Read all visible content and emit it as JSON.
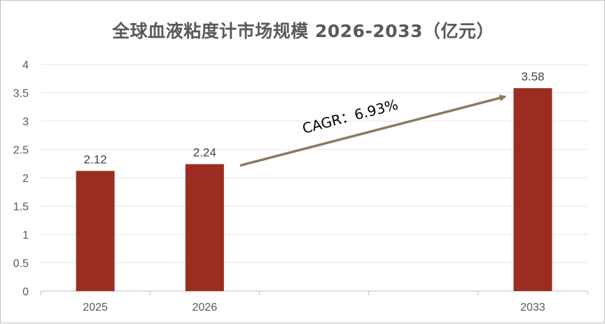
{
  "chart_data": {
    "type": "bar",
    "title": "全球血液粘度计市场规模 2026-2033（亿元）",
    "categories": [
      "2025",
      "2026",
      "",
      "",
      "2033"
    ],
    "values": [
      2.12,
      2.24,
      null,
      null,
      3.58
    ],
    "data_labels": [
      "2.12",
      "2.24",
      "",
      "",
      "3.58"
    ],
    "ylim": [
      0,
      4
    ],
    "yticks": [
      "0",
      "0.5",
      "1",
      "1.5",
      "2",
      "2.5",
      "3",
      "3.5",
      "4"
    ],
    "ytick_values": [
      0,
      0.5,
      1,
      1.5,
      2,
      2.5,
      3,
      3.5,
      4
    ],
    "grid": true,
    "bar_color": "#9b2d20",
    "annotation": {
      "text": "CAGR：6.93%",
      "from_category": "2026",
      "to_category": "2033",
      "color": "#8b7b5a"
    }
  }
}
